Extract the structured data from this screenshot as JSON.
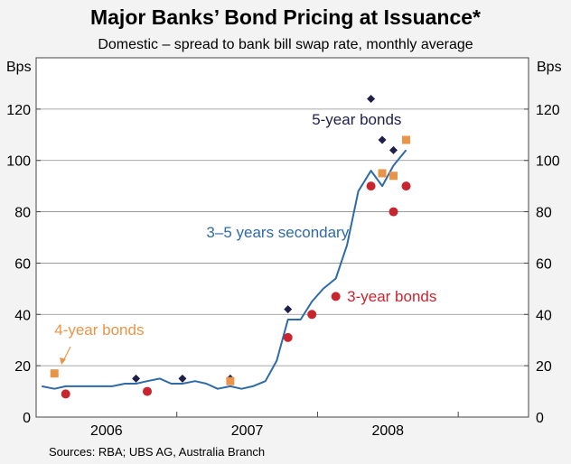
{
  "chart_data": {
    "type": "line",
    "title": "Major Banks’ Bond Pricing at Issuance*",
    "subtitle": "Domestic – spread to bank bill swap rate, monthly average",
    "ylabel_left": "Bps",
    "ylabel_right": "Bps",
    "ylim": [
      0,
      140
    ],
    "yticks": [
      0,
      20,
      40,
      60,
      80,
      100,
      120
    ],
    "xlim": [
      2005.5,
      2009.0
    ],
    "xcategories": [
      {
        "label": "2006",
        "center": 2006.0
      },
      {
        "label": "2007",
        "center": 2007.0
      },
      {
        "label": "2008",
        "center": 2008.0
      }
    ],
    "year_separators": [
      2005.5,
      2006.5,
      2007.5,
      2008.5
    ],
    "source": "Sources: RBA; UBS AG, Australia Branch",
    "series": [
      {
        "name": "3–5 years secondary",
        "kind": "line",
        "color": "#2f6aa8",
        "points": [
          [
            2005.54,
            12
          ],
          [
            2005.63,
            11
          ],
          [
            2005.71,
            12
          ],
          [
            2005.79,
            12
          ],
          [
            2005.88,
            12
          ],
          [
            2005.96,
            12
          ],
          [
            2006.04,
            12
          ],
          [
            2006.13,
            13
          ],
          [
            2006.21,
            13
          ],
          [
            2006.29,
            14
          ],
          [
            2006.38,
            15
          ],
          [
            2006.46,
            13
          ],
          [
            2006.54,
            13
          ],
          [
            2006.63,
            14
          ],
          [
            2006.71,
            13
          ],
          [
            2006.79,
            11
          ],
          [
            2006.88,
            12
          ],
          [
            2006.96,
            11
          ],
          [
            2007.04,
            12
          ],
          [
            2007.13,
            14
          ],
          [
            2007.21,
            22
          ],
          [
            2007.29,
            38
          ],
          [
            2007.38,
            38
          ],
          [
            2007.46,
            45
          ],
          [
            2007.54,
            50
          ],
          [
            2007.63,
            54
          ],
          [
            2007.71,
            67
          ],
          [
            2007.79,
            88
          ],
          [
            2007.88,
            96
          ],
          [
            2007.96,
            90
          ],
          [
            2008.04,
            98
          ],
          [
            2008.13,
            104
          ]
        ]
      },
      {
        "name": "5-year bonds",
        "kind": "marker",
        "marker": "diamond",
        "color": "#1f1f4a",
        "points": [
          [
            2006.21,
            15
          ],
          [
            2006.54,
            15
          ],
          [
            2006.88,
            15
          ],
          [
            2007.29,
            42
          ],
          [
            2007.88,
            124
          ],
          [
            2007.96,
            108
          ],
          [
            2008.04,
            104
          ]
        ]
      },
      {
        "name": "4-year bonds",
        "kind": "marker",
        "marker": "square",
        "color": "#e8954a",
        "points": [
          [
            2005.63,
            17
          ],
          [
            2006.88,
            14
          ],
          [
            2007.96,
            95
          ],
          [
            2008.04,
            94
          ],
          [
            2008.13,
            108
          ]
        ]
      },
      {
        "name": "3-year bonds",
        "kind": "marker",
        "marker": "circle",
        "color": "#c8252e",
        "points": [
          [
            2005.71,
            9
          ],
          [
            2006.29,
            10
          ],
          [
            2007.29,
            31
          ],
          [
            2007.46,
            40
          ],
          [
            2007.63,
            47
          ],
          [
            2007.88,
            90
          ],
          [
            2008.04,
            80
          ],
          [
            2008.13,
            90
          ]
        ]
      }
    ],
    "annotations": [
      {
        "text": "5-year bonds",
        "color": "#1f1f4a",
        "x": 2007.46,
        "y": 114
      },
      {
        "text": "3–5 years secondary",
        "color": "#2f6aa8",
        "x": 2006.71,
        "y": 70
      },
      {
        "text": "3-year bonds",
        "color": "#c8252e",
        "x": 2007.71,
        "y": 45
      },
      {
        "text": "4-year bonds",
        "color": "#e8954a",
        "x": 2005.63,
        "y": 32
      }
    ]
  }
}
